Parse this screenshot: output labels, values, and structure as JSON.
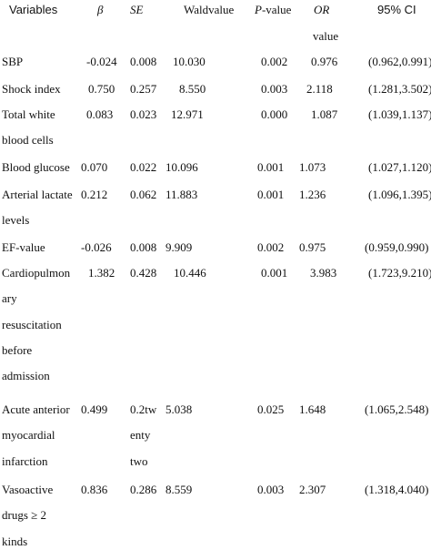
{
  "headers": {
    "variables": "Variables",
    "beta": "β",
    "se": "SE",
    "wald": "Waldvalue",
    "p_italic": "P",
    "p_rest": "-value",
    "or_top": "OR",
    "or_bottom": "value",
    "ci": "95% CI"
  },
  "rows": [
    {
      "label": [
        "SBP"
      ],
      "beta": "-0.024",
      "se": [
        "0.008"
      ],
      "wald": "10.030",
      "p": "0.002",
      "or": "0.976",
      "ci": "(0.962,0.991)"
    },
    {
      "label": [
        "Shock index"
      ],
      "beta": "0.750",
      "se": [
        "0.257"
      ],
      "wald": "8.550",
      "p": "0.003",
      "or": "2.118",
      "ci": "(1.281,3.502)"
    },
    {
      "label": [
        "Total white",
        "blood cells"
      ],
      "beta": "0.083",
      "se": [
        "0.023"
      ],
      "wald": "12.971",
      "p": "0.000",
      "or": "1.087",
      "ci": "(1.039,1.137)"
    },
    {
      "label": [
        "Blood glucose"
      ],
      "beta": "0.070",
      "se": [
        "0.022"
      ],
      "wald": "10.096",
      "p": "0.001",
      "or": "1.073",
      "ci": "(1.027,1.120)"
    },
    {
      "label": [
        "Arterial lactate",
        "levels"
      ],
      "beta": "0.212",
      "se": [
        "0.062"
      ],
      "wald": "11.883",
      "p": "0.001",
      "or": "1.236",
      "ci": "(1.096,1.395)"
    },
    {
      "label": [
        "EF-value"
      ],
      "beta": "-0.026",
      "se": [
        "0.008"
      ],
      "wald": "9.909",
      "p": "0.002",
      "or": "0.975",
      "ci": "(0.959,0.990)"
    },
    {
      "label": [
        "Cardiopulmon",
        "ary",
        "resuscitation",
        "before",
        "admission"
      ],
      "beta": "1.382",
      "se": [
        "0.428"
      ],
      "wald": "10.446",
      "p": "0.001",
      "or": "3.983",
      "ci": "(1.723,9.210)"
    },
    {
      "label": [
        "Acute anterior",
        "myocardial",
        "infarction"
      ],
      "beta": "0.499",
      "se": [
        "0.2tw",
        "enty",
        "two"
      ],
      "wald": "5.038",
      "p": "0.025",
      "or": "1.648",
      "ci": "(1.065,2.548)"
    },
    {
      "label": [
        "Vasoactive",
        "drugs ≥ 2",
        "kinds"
      ],
      "beta": "0.836",
      "se": [
        "0.286"
      ],
      "wald": "8.559",
      "p": "0.003",
      "or": "2.307",
      "ci": "(1.318,4.040)"
    }
  ]
}
